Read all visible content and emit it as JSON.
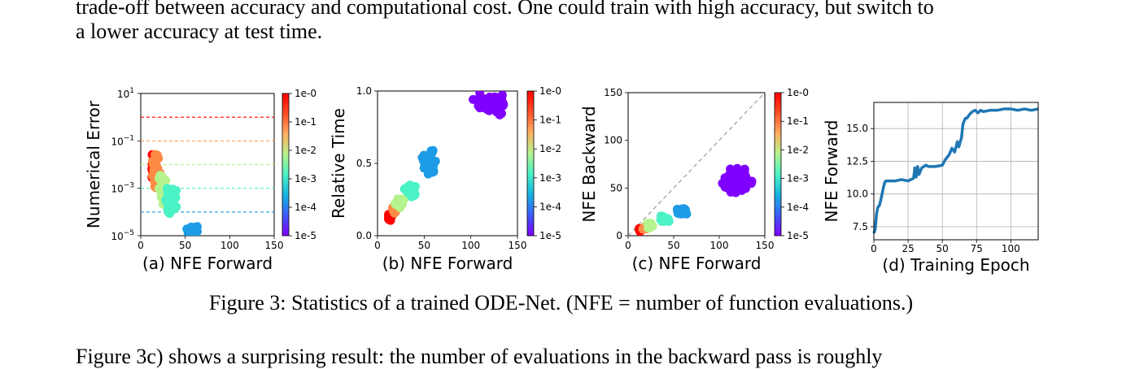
{
  "paragraphs": {
    "top_line1": "trade-off between accuracy and computational cost. One could train with high accuracy, but switch to",
    "top_line2": "a lower accuracy at test time.",
    "bottom_line": "Figure 3c) shows a surprising result: the number of evaluations in the backward pass is roughly"
  },
  "caption": "Figure 3: Statistics of a trained ODE-Net. (NFE = number of function evaluations.)",
  "colorbar": {
    "ticks": [
      "1e-0",
      "1e-1",
      "1e-2",
      "1e-3",
      "1e-4",
      "1e-5"
    ],
    "colors": [
      "#8000ff",
      "#3b5cf9",
      "#16b2e0",
      "#4bf2c5",
      "#b4f38d",
      "#ffb062",
      "#ff4f28",
      "#ff0000"
    ]
  },
  "chart_data": [
    {
      "id": "a",
      "type": "scatter",
      "xlabel": "(a) NFE Forward",
      "ylabel": "Numerical Error",
      "xlim": [
        0,
        150
      ],
      "ylim": [
        1e-05,
        10
      ],
      "yscale": "log",
      "xticks": [
        "0",
        "50",
        "100",
        "150"
      ],
      "yticks": [
        {
          "base": "10",
          "exp": "1",
          "value": 10
        },
        {
          "base": "10",
          "exp": "−1",
          "value": 0.1
        },
        {
          "base": "10",
          "exp": "−3",
          "value": 0.001
        },
        {
          "base": "10",
          "exp": "−5",
          "value": 1e-05
        }
      ],
      "tolerance_lines": [
        {
          "tol": 1,
          "color": "#ff0000"
        },
        {
          "tol": 0.1,
          "color": "#ff9a55"
        },
        {
          "tol": 0.01,
          "color": "#b4f38d"
        },
        {
          "tol": 0.001,
          "color": "#4bf2c5"
        },
        {
          "tol": 0.0001,
          "color": "#1d9be6"
        }
      ],
      "clusters": [
        {
          "tol": 1,
          "color": "#ff0000",
          "x": [
            10,
            18
          ],
          "y": [
            0.0015,
            0.04
          ],
          "n": 40
        },
        {
          "tol": 0.1,
          "color": "#ff8a45",
          "x": [
            12,
            22
          ],
          "y": [
            0.0005,
            0.05
          ],
          "n": 35
        },
        {
          "tol": 0.01,
          "color": "#b4f38d",
          "x": [
            18,
            32
          ],
          "y": [
            0.00015,
            0.005
          ],
          "n": 40
        },
        {
          "tol": 0.001,
          "color": "#4bf2c5",
          "x": [
            24,
            42
          ],
          "y": [
            8e-05,
            0.002
          ],
          "n": 35
        },
        {
          "tol": 0.0001,
          "color": "#1d9be6",
          "x": [
            50,
            66
          ],
          "y": [
            1e-05,
            3e-05
          ],
          "n": 45
        }
      ]
    },
    {
      "id": "b",
      "type": "scatter",
      "xlabel": "(b) NFE Forward",
      "ylabel": "Relative Time",
      "xlim": [
        0,
        150
      ],
      "ylim": [
        0,
        1
      ],
      "xticks": [
        "0",
        "50",
        "100",
        "150"
      ],
      "yticks": [
        "0.0",
        "0.5",
        "1.0"
      ],
      "clusters": [
        {
          "tol": 1,
          "color": "#ff0000",
          "x": [
            10,
            16
          ],
          "y": [
            0.1,
            0.16
          ],
          "n": 25
        },
        {
          "tol": 0.1,
          "color": "#ff8a45",
          "x": [
            14,
            22
          ],
          "y": [
            0.14,
            0.22
          ],
          "n": 20
        },
        {
          "tol": 0.01,
          "color": "#b4f38d",
          "x": [
            18,
            30
          ],
          "y": [
            0.18,
            0.28
          ],
          "n": 25
        },
        {
          "tol": 0.001,
          "color": "#4bf2c5",
          "x": [
            26,
            44
          ],
          "y": [
            0.25,
            0.38
          ],
          "n": 30
        },
        {
          "tol": 0.0001,
          "color": "#1d9be6",
          "x": [
            46,
            66
          ],
          "y": [
            0.38,
            0.62
          ],
          "n": 45
        },
        {
          "tol": 1e-05,
          "color": "#8000ff",
          "x": [
            98,
            145
          ],
          "y": [
            0.82,
            1.0
          ],
          "n": 60
        }
      ]
    },
    {
      "id": "c",
      "type": "scatter",
      "xlabel": "(c) NFE Forward",
      "ylabel": "NFE Backward",
      "xlim": [
        0,
        150
      ],
      "ylim": [
        0,
        150
      ],
      "xticks": [
        "0",
        "50",
        "100",
        "150"
      ],
      "yticks": [
        "0",
        "50",
        "100",
        "150"
      ],
      "diagonal": true,
      "clusters": [
        {
          "tol": 1,
          "color": "#ff0000",
          "x": [
            10,
            16
          ],
          "y": [
            3,
            9
          ],
          "n": 15
        },
        {
          "tol": 0.1,
          "color": "#ff8a45",
          "x": [
            14,
            22
          ],
          "y": [
            5,
            11
          ],
          "n": 12
        },
        {
          "tol": 0.01,
          "color": "#b4f38d",
          "x": [
            18,
            30
          ],
          "y": [
            6,
            14
          ],
          "n": 15
        },
        {
          "tol": 0.001,
          "color": "#4bf2c5",
          "x": [
            32,
            46
          ],
          "y": [
            12,
            22
          ],
          "n": 20
        },
        {
          "tol": 0.0001,
          "color": "#1d9be6",
          "x": [
            50,
            68
          ],
          "y": [
            20,
            32
          ],
          "n": 30
        },
        {
          "tol": 1e-05,
          "color": "#8000ff",
          "x": [
            95,
            145
          ],
          "y": [
            38,
            76
          ],
          "n": 60
        }
      ]
    },
    {
      "id": "d",
      "type": "line",
      "xlabel": "(d) Training Epoch",
      "ylabel": "NFE Forward",
      "xlim": [
        0,
        120
      ],
      "ylim": [
        6.5,
        17
      ],
      "xticks": [
        "0",
        "25",
        "50",
        "75",
        "100"
      ],
      "yticks": [
        "7.5",
        "10.0",
        "12.5",
        "15.0"
      ],
      "grid": true,
      "color": "#1f77b4",
      "series": [
        {
          "x": [
            0,
            1,
            2,
            3,
            4,
            5,
            6,
            7,
            8,
            9,
            10,
            12,
            14,
            16,
            20,
            25,
            29,
            30,
            31,
            32,
            33,
            35,
            38,
            40,
            45,
            50,
            52,
            55,
            57,
            59,
            61,
            62,
            64,
            65,
            66,
            67,
            68,
            70,
            72,
            74,
            76,
            78,
            80,
            85,
            90,
            95,
            100,
            105,
            110,
            115,
            120
          ],
          "y": [
            7.0,
            7.3,
            8.5,
            9.0,
            9.1,
            9.5,
            10.0,
            10.5,
            10.9,
            11.0,
            11.0,
            11.0,
            11.0,
            11.0,
            11.1,
            11.0,
            11.2,
            12.0,
            11.3,
            12.1,
            11.5,
            12.0,
            12.2,
            12.1,
            12.1,
            12.2,
            12.6,
            13.0,
            13.5,
            13.2,
            14.0,
            13.6,
            14.3,
            15.3,
            15.6,
            15.8,
            15.8,
            16.1,
            16.3,
            16.4,
            16.2,
            16.4,
            16.3,
            16.4,
            16.4,
            16.5,
            16.5,
            16.4,
            16.5,
            16.4,
            16.5
          ]
        }
      ]
    }
  ]
}
